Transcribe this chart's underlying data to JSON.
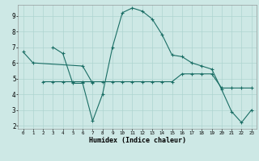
{
  "xlabel": "Humidex (Indice chaleur)",
  "bg_color": "#cde8e5",
  "line_color": "#1a6e65",
  "grid_color": "#aed4d0",
  "xlim": [
    -0.5,
    23.5
  ],
  "ylim": [
    1.8,
    9.7
  ],
  "yticks": [
    2,
    3,
    4,
    5,
    6,
    7,
    8,
    9
  ],
  "xticks": [
    0,
    1,
    2,
    3,
    4,
    5,
    6,
    7,
    8,
    9,
    10,
    11,
    12,
    13,
    14,
    15,
    16,
    17,
    18,
    19,
    20,
    21,
    22,
    23
  ],
  "line1_x": [
    0,
    1,
    6,
    7
  ],
  "line1_y": [
    6.7,
    6.0,
    5.8,
    4.7
  ],
  "line2_x": [
    3,
    4,
    5,
    6,
    7,
    8,
    9,
    10,
    11,
    12,
    13,
    14,
    15,
    16,
    17,
    18,
    19,
    20,
    21,
    22,
    23
  ],
  "line2_y": [
    7.0,
    6.6,
    4.7,
    4.7,
    2.3,
    4.0,
    7.0,
    9.2,
    9.5,
    9.3,
    8.8,
    7.8,
    6.5,
    6.4,
    6.0,
    5.8,
    5.6,
    4.3,
    2.9,
    2.2,
    3.0
  ],
  "line3_x": [
    2,
    3,
    4,
    5,
    6,
    7,
    8,
    9,
    10,
    11,
    12,
    13,
    14,
    15,
    16,
    17,
    18,
    19,
    20,
    21,
    22,
    23
  ],
  "line3_y": [
    4.8,
    4.8,
    4.8,
    4.8,
    4.8,
    4.8,
    4.8,
    4.8,
    4.8,
    4.8,
    4.8,
    4.8,
    4.8,
    4.8,
    5.3,
    5.3,
    5.3,
    5.3,
    4.4,
    4.4,
    4.4,
    4.4
  ]
}
